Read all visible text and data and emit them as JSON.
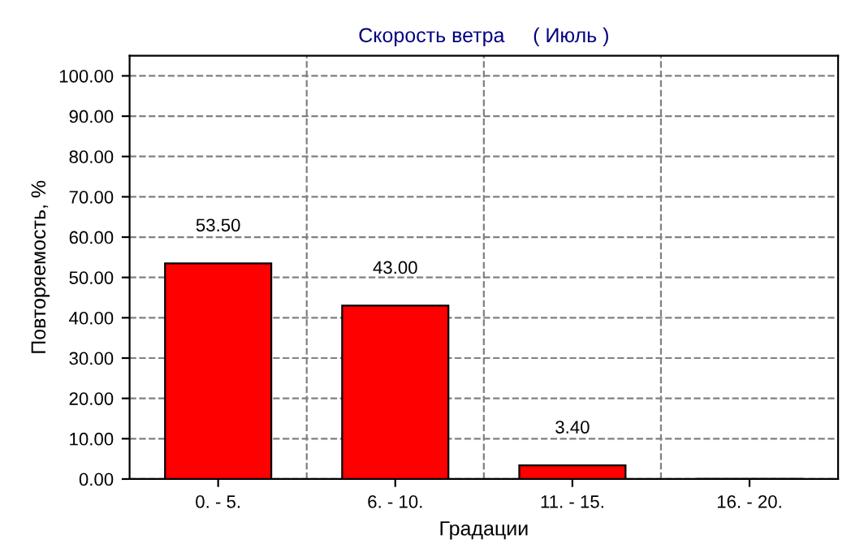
{
  "chart_data": {
    "type": "bar",
    "title": "Скорость ветра     ( Июль )",
    "xlabel": "Градации",
    "ylabel": "Повторяемость, %",
    "categories": [
      "0. - 5.",
      "6. - 10.",
      "11. - 15.",
      "16. - 20."
    ],
    "values": [
      53.5,
      43.0,
      3.4,
      0
    ],
    "value_labels": [
      "53.50",
      "43.00",
      "3.40",
      null
    ],
    "color": "#ff0000",
    "ylim": [
      0,
      105
    ],
    "yticks": [
      {
        "value": 0,
        "label": "0.00"
      },
      {
        "value": 10,
        "label": "10.00"
      },
      {
        "value": 20,
        "label": "20.00"
      },
      {
        "value": 30,
        "label": "30.00"
      },
      {
        "value": 40,
        "label": "40.00"
      },
      {
        "value": 50,
        "label": "50.00"
      },
      {
        "value": 60,
        "label": "60.00"
      },
      {
        "value": 70,
        "label": "70.00"
      },
      {
        "value": 80,
        "label": "80.00"
      },
      {
        "value": 90,
        "label": "90.00"
      },
      {
        "value": 100,
        "label": "100.00"
      }
    ],
    "grid": true
  }
}
